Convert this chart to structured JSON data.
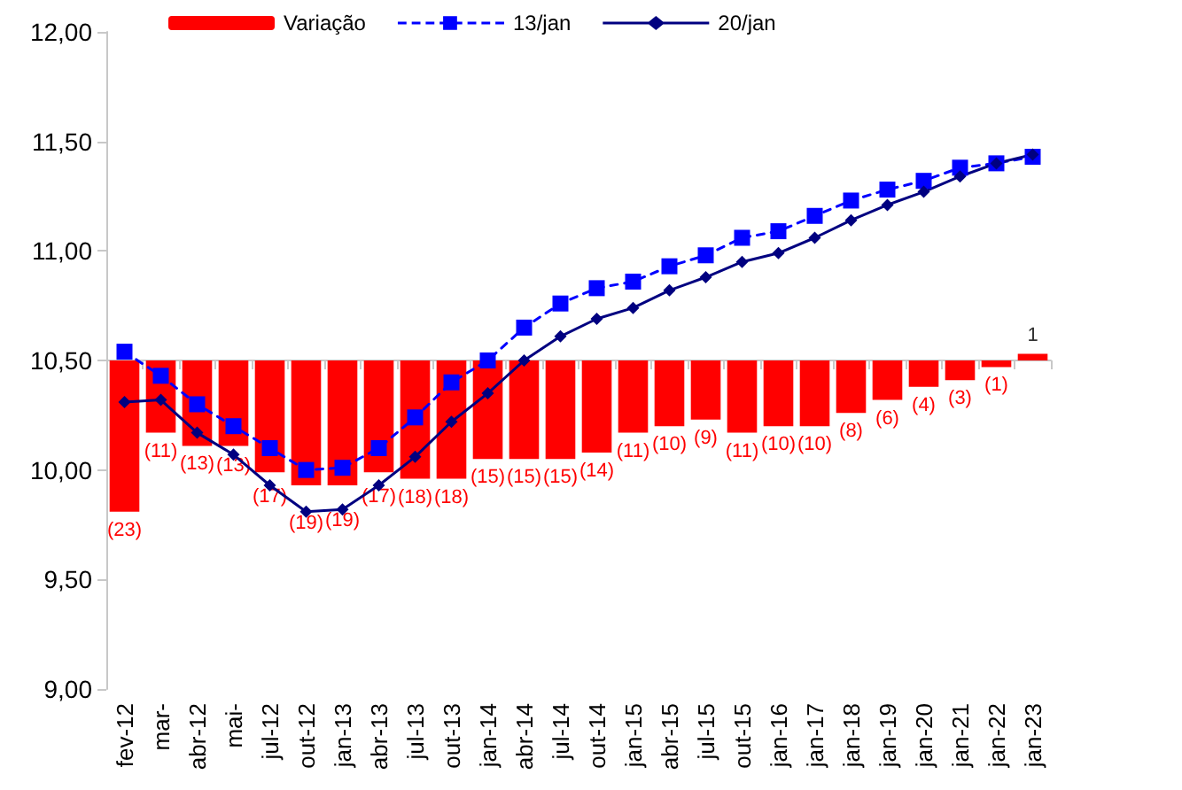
{
  "chart_data": {
    "type": "line",
    "categories": [
      "fev-12",
      "mar-",
      "abr-12",
      "mai-",
      "jul-12",
      "out-12",
      "jan-13",
      "abr-13",
      "jul-13",
      "out-13",
      "jan-14",
      "abr-14",
      "jul-14",
      "out-14",
      "jan-15",
      "abr-15",
      "jul-15",
      "out-15",
      "jan-16",
      "jan-17",
      "jan-18",
      "jan-19",
      "jan-20",
      "jan-21",
      "jan-22",
      "jan-23"
    ],
    "ylim": [
      9,
      12
    ],
    "yticks": [
      {
        "value": 9,
        "label": "9,00"
      },
      {
        "value": 9.5,
        "label": "9,50"
      },
      {
        "value": 10,
        "label": "10,00"
      },
      {
        "value": 10.5,
        "label": "10,50"
      },
      {
        "value": 11,
        "label": "11,00"
      },
      {
        "value": 11.5,
        "label": "11,50"
      },
      {
        "value": 12,
        "label": "12,00"
      }
    ],
    "y2lim": [
      -50,
      50
    ],
    "tick_labels": "xy",
    "legend": "top",
    "series": [
      {
        "name": "Variação",
        "type": "bar",
        "axis": "y2",
        "color": "#ff0000",
        "values": [
          -23,
          -11,
          -13,
          -13,
          -17,
          -19,
          -19,
          -17,
          -18,
          -18,
          -15,
          -15,
          -15,
          -14,
          -11,
          -10,
          -9,
          -11,
          -10,
          -10,
          -8,
          -6,
          -4,
          -3,
          -1,
          1
        ],
        "value_labels": [
          "(23)",
          "(11)",
          "(13)",
          "(13)",
          "(17)",
          "(19)",
          "(19)",
          "(17)",
          "(18)",
          "(18)",
          "(15)",
          "(15)",
          "(15)",
          "(14)",
          "(11)",
          "(10)",
          "(9)",
          "(11)",
          "(10)",
          "(10)",
          "(8)",
          "(6)",
          "(4)",
          "(3)",
          "(1)",
          "1"
        ]
      },
      {
        "name": "13/jan",
        "color": "#0000ff",
        "marker": "square",
        "line_style": "dashed",
        "values": [
          10.54,
          10.43,
          10.3,
          10.2,
          10.1,
          10.0,
          10.01,
          10.1,
          10.24,
          10.4,
          10.5,
          10.65,
          10.76,
          10.83,
          10.86,
          10.93,
          10.98,
          11.06,
          11.09,
          11.16,
          11.23,
          11.28,
          11.32,
          11.38,
          11.4,
          11.43
        ]
      },
      {
        "name": "20/jan",
        "color": "#000080",
        "marker": "diamond",
        "line_style": "solid",
        "values": [
          10.31,
          10.32,
          10.17,
          10.07,
          9.93,
          9.81,
          9.82,
          9.93,
          10.06,
          10.22,
          10.35,
          10.5,
          10.61,
          10.69,
          10.74,
          10.82,
          10.88,
          10.95,
          10.99,
          11.06,
          11.14,
          11.21,
          11.27,
          11.34,
          11.4,
          11.44
        ]
      }
    ]
  }
}
